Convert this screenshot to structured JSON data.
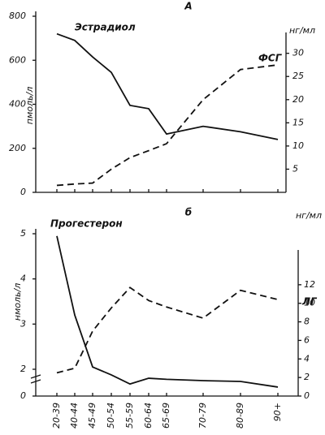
{
  "chart_data": [
    {
      "type": "line",
      "title": "А",
      "ylabel": "пмоль/л",
      "y2label": "нг/мл",
      "ylim": [
        0,
        800
      ],
      "yticks": [
        0,
        200,
        400,
        600,
        800
      ],
      "y2lim": [
        0,
        38
      ],
      "y2ticks": [
        5,
        10,
        15,
        20,
        25,
        30
      ],
      "series": [
        {
          "name": "Эстрадиол",
          "color": "#111111",
          "style": "solid",
          "axis": "y",
          "values": [
            720,
            690,
            615,
            545,
            395,
            380,
            265,
            300,
            275,
            240
          ]
        },
        {
          "name": "ФСГ",
          "color": "#111111",
          "style": "dashed",
          "axis": "y2",
          "values": [
            1.5,
            1.8,
            2,
            5,
            7.5,
            9,
            10.5,
            20,
            26.5,
            27.5
          ]
        }
      ]
    },
    {
      "type": "line",
      "title": "б",
      "ylabel": "нмоль/л",
      "y2label": "нг/мл",
      "categories": [
        "20-39",
        "40-44",
        "45-49",
        "50-54",
        "55-59",
        "60-64",
        "65-69",
        "70-79",
        "80-89",
        "90+"
      ],
      "ylim": [
        0,
        5
      ],
      "yticks": [
        0,
        2,
        3,
        4,
        5
      ],
      "axis_break": true,
      "y2lim": [
        0,
        17.5
      ],
      "y2ticks": [
        0,
        2,
        4,
        6,
        8,
        10,
        12
      ],
      "series": [
        {
          "name": "Прогестерон",
          "color": "#111111",
          "style": "solid",
          "axis": "y",
          "values": [
            4.95,
            3.2,
            2.05,
            1.58,
            0.9,
            1.33,
            1.25,
            1.15,
            1.09,
            0.67
          ]
        },
        {
          "name": "ЛГ",
          "color": "#111111",
          "style": "dashed",
          "axis": "y2",
          "values": [
            2.5,
            3,
            7,
            9.5,
            11.7,
            10.3,
            9.6,
            8.4,
            11.4,
            10.4
          ]
        }
      ]
    }
  ]
}
